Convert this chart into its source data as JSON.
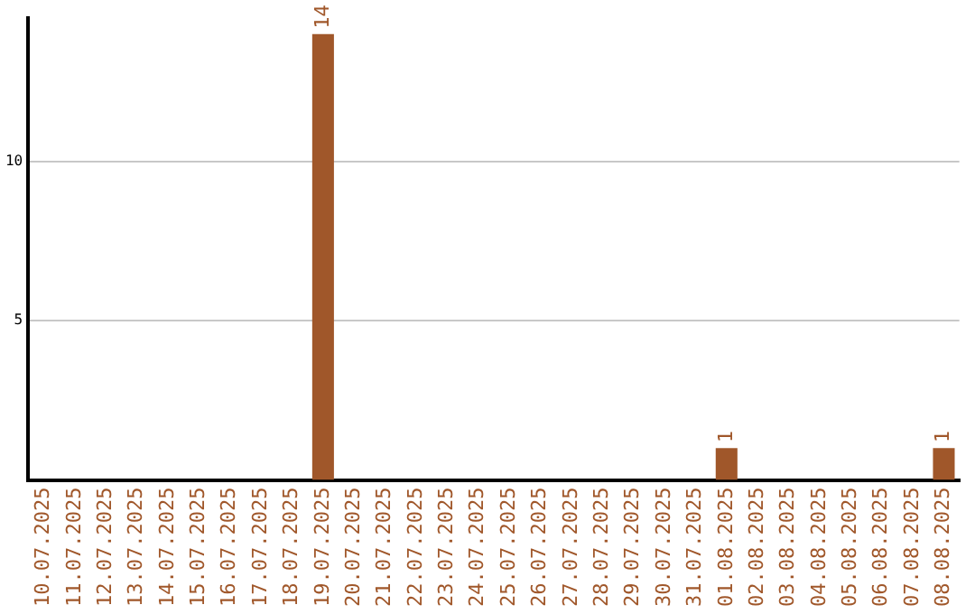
{
  "chart_data": {
    "type": "bar",
    "categories": [
      "10.07.2025",
      "11.07.2025",
      "12.07.2025",
      "13.07.2025",
      "14.07.2025",
      "15.07.2025",
      "16.07.2025",
      "17.07.2025",
      "18.07.2025",
      "19.07.2025",
      "20.07.2025",
      "21.07.2025",
      "22.07.2025",
      "23.07.2025",
      "24.07.2025",
      "25.07.2025",
      "26.07.2025",
      "27.07.2025",
      "28.07.2025",
      "29.07.2025",
      "30.07.2025",
      "31.07.2025",
      "01.08.2025",
      "02.08.2025",
      "03.08.2025",
      "04.08.2025",
      "05.08.2025",
      "06.08.2025",
      "07.08.2025",
      "08.08.2025"
    ],
    "values": [
      0,
      0,
      0,
      0,
      0,
      0,
      0,
      0,
      0,
      14,
      0,
      0,
      0,
      0,
      0,
      0,
      0,
      0,
      0,
      0,
      0,
      0,
      1,
      0,
      0,
      0,
      0,
      0,
      0,
      1
    ],
    "value_labels": [
      null,
      null,
      null,
      null,
      null,
      null,
      null,
      null,
      null,
      "14",
      null,
      null,
      null,
      null,
      null,
      null,
      null,
      null,
      null,
      null,
      null,
      null,
      "1",
      null,
      null,
      null,
      null,
      null,
      null,
      "1"
    ],
    "color": "#a0572a",
    "ylim": [
      0,
      14.5
    ],
    "yticks": [
      5,
      10
    ],
    "grid": "y",
    "legend": false
  }
}
